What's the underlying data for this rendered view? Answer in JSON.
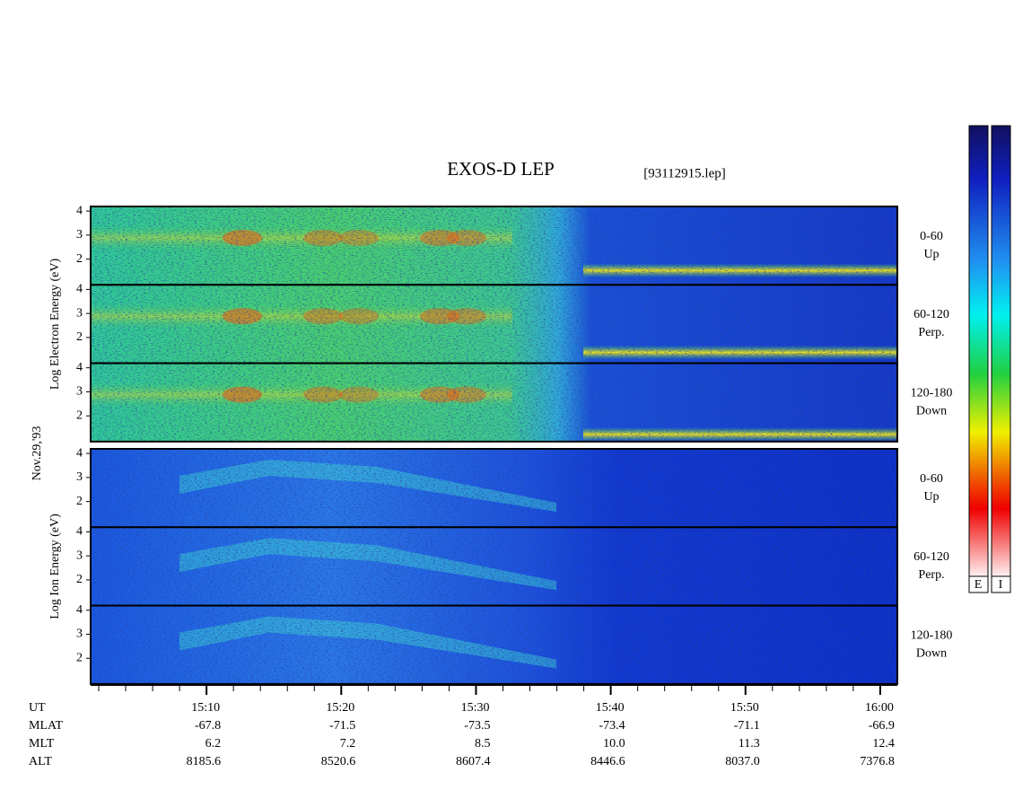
{
  "chart_data": {
    "type": "spectrogram",
    "title": "EXOS-D LEP",
    "file": "[93112915.lep]",
    "date": "Nov.29,'93",
    "electron": {
      "axis_label": "Log  Electron  Energy (eV)",
      "panels": [
        {
          "angle": "0-60",
          "direction": "Up"
        },
        {
          "angle": "60-120",
          "direction": "Perp."
        },
        {
          "angle": "120-180",
          "direction": "Down"
        }
      ]
    },
    "ion": {
      "axis_label": "Log  Ion  Energy (eV)",
      "panels": [
        {
          "angle": "0-60",
          "direction": "Up"
        },
        {
          "angle": "60-120",
          "direction": "Perp."
        },
        {
          "angle": "120-180",
          "direction": "Down"
        }
      ]
    },
    "ylim": [
      0.93,
      4.19
    ],
    "yticks": [
      2,
      3,
      4
    ],
    "xlim": [
      901.4,
      961.27
    ],
    "xticks": [
      {
        "value": 910,
        "label": "15:10"
      },
      {
        "value": 920,
        "label": "15:20"
      },
      {
        "value": 930,
        "label": "15:30"
      },
      {
        "value": 940,
        "label": "15:40"
      },
      {
        "value": 950,
        "label": "15:50"
      },
      {
        "value": 960,
        "label": "16:00"
      }
    ],
    "x_label": "UT",
    "ephemeris": [
      {
        "label": "MLAT",
        "values": [
          "-67.8",
          "-71.5",
          "-73.5",
          "-73.4",
          "-71.1",
          "-66.9"
        ]
      },
      {
        "label": "MLT",
        "values": [
          "6.2",
          "7.2",
          "8.5",
          "10.0",
          "11.3",
          "12.4"
        ]
      },
      {
        "label": "ALT",
        "values": [
          "8185.6",
          "8520.6",
          "8607.4",
          "8446.6",
          "8037.0",
          "7376.8"
        ]
      }
    ],
    "colorbars": [
      "E",
      "I"
    ]
  }
}
